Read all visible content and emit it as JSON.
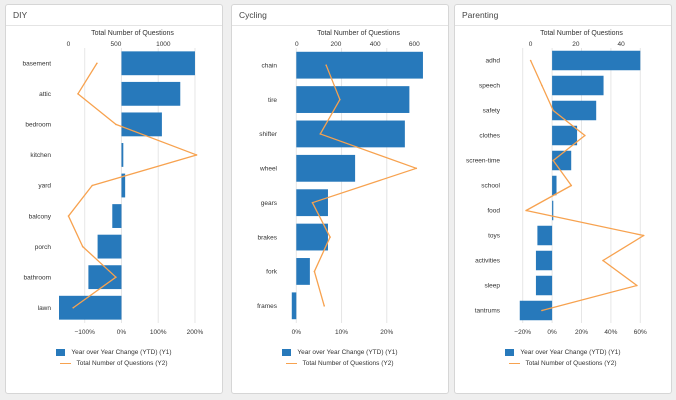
{
  "colors": {
    "bar": "#2779bb",
    "line": "#f7a24f",
    "grid": "#e6e6e6",
    "text": "#333333"
  },
  "chart_data": [
    {
      "type": "bar",
      "title": "DIY",
      "top_axis_title": "Total Number of Questions",
      "categories": [
        "basement",
        "attic",
        "bedroom",
        "kitchen",
        "yard",
        "balcony",
        "porch",
        "bathroom",
        "lawn"
      ],
      "series": [
        {
          "name": "Year over Year Change (YTD) (Y1)",
          "type": "bar",
          "axis": "bottom",
          "values": [
            200,
            160,
            110,
            5,
            10,
            -25,
            -65,
            -90,
            -170
          ]
        },
        {
          "name": "Total Number of Questions (Y2)",
          "type": "line",
          "axis": "top",
          "values": [
            300,
            100,
            500,
            1350,
            250,
            0,
            150,
            500,
            50
          ]
        }
      ],
      "bottom_axis": {
        "min": -170,
        "max": 230,
        "ticks": [
          -100,
          0,
          100,
          200
        ],
        "tick_labels": [
          "−100%",
          "0%",
          "100%",
          "200%"
        ]
      },
      "top_axis": {
        "min": -100,
        "max": 1450,
        "ticks": [
          0,
          500,
          1000
        ],
        "tick_labels": [
          "0",
          "500",
          "1000"
        ]
      },
      "legend": [
        "Year over Year Change (YTD) (Y1)",
        "Total Number of Questions (Y2)"
      ]
    },
    {
      "type": "bar",
      "title": "Cycling",
      "top_axis_title": "Total Number of Questions",
      "categories": [
        "chain",
        "tire",
        "shifter",
        "wheel",
        "gears",
        "brakes",
        "fork",
        "frames"
      ],
      "series": [
        {
          "name": "Year over Year Change (YTD) (Y1)",
          "type": "bar",
          "axis": "bottom",
          "values": [
            28,
            25,
            24,
            13,
            7,
            7,
            3,
            -1
          ]
        },
        {
          "name": "Total Number of Questions (Y2)",
          "type": "line",
          "axis": "top",
          "values": [
            150,
            220,
            120,
            610,
            80,
            170,
            90,
            140
          ]
        }
      ],
      "bottom_axis": {
        "min": -2.5,
        "max": 30,
        "ticks": [
          0,
          10,
          20
        ],
        "tick_labels": [
          "0%",
          "10%",
          "20%"
        ]
      },
      "top_axis": {
        "min": -60,
        "max": 690,
        "ticks": [
          0,
          200,
          400,
          600
        ],
        "tick_labels": [
          "0",
          "200",
          "400",
          "600"
        ]
      },
      "legend": [
        "Year over Year Change (YTD) (Y1)",
        "Total Number of Questions (Y2)"
      ]
    },
    {
      "type": "bar",
      "title": "Parenting",
      "top_axis_title": "Total Number of Questions",
      "categories": [
        "adhd",
        "speech",
        "safety",
        "clothes",
        "screen-time",
        "school",
        "food",
        "toys",
        "activities",
        "sleep",
        "tantrums"
      ],
      "series": [
        {
          "name": "Year over Year Change (YTD) (Y1)",
          "type": "bar",
          "axis": "bottom",
          "values": [
            60,
            35,
            30,
            17,
            13,
            3,
            0,
            -10,
            -11,
            -11,
            -22
          ]
        },
        {
          "name": "Total Number of Questions (Y2)",
          "type": "line",
          "axis": "top",
          "values": [
            0,
            5,
            10,
            24,
            10,
            18,
            -2,
            50,
            32,
            47,
            5
          ]
        }
      ],
      "bottom_axis": {
        "min": -30,
        "max": 70,
        "ticks": [
          -20,
          0,
          20,
          40,
          60
        ],
        "tick_labels": [
          "−20%",
          "0%",
          "20%",
          "40%",
          "60%"
        ]
      },
      "top_axis": {
        "min": -10,
        "max": 55,
        "ticks": [
          0,
          20,
          40
        ],
        "tick_labels": [
          "0",
          "20",
          "40"
        ]
      },
      "legend": [
        "Year over Year Change (YTD) (Y1)",
        "Total Number of Questions (Y2)"
      ]
    }
  ]
}
